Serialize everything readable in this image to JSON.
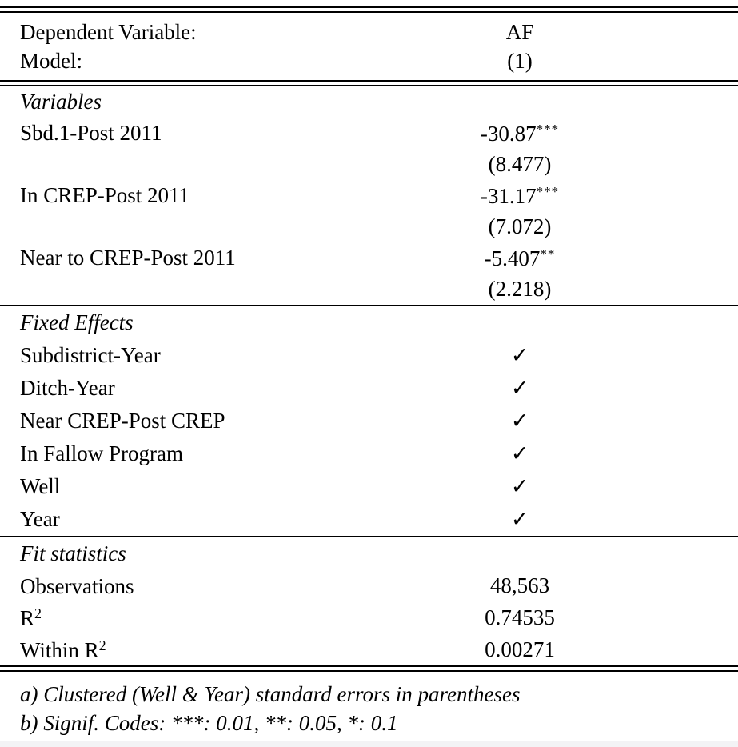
{
  "colors": {
    "background": "#ffffff",
    "text": "#000000",
    "rule": "#000000",
    "bottom_strip": "#f3f3f5"
  },
  "header": {
    "rows": [
      {
        "label": "Dependent Variable:",
        "value": "AF"
      },
      {
        "label": "Model:",
        "value": "(1)"
      }
    ]
  },
  "variables": {
    "section_title": "Variables",
    "rows": [
      {
        "label": "Sbd.1-Post 2011",
        "coef": "-30.87",
        "stars": "***",
        "se": "(8.477)"
      },
      {
        "label": "In CREP-Post 2011",
        "coef": "-31.17",
        "stars": "***",
        "se": "(7.072)"
      },
      {
        "label": "Near to CREP-Post 2011",
        "coef": "-5.407",
        "stars": "**",
        "se": "(2.218)"
      }
    ]
  },
  "fixed_effects": {
    "section_title": "Fixed Effects",
    "rows": [
      {
        "label": "Subdistrict-Year",
        "value": "✓"
      },
      {
        "label": "Ditch-Year",
        "value": "✓"
      },
      {
        "label": "Near CREP-Post CREP",
        "value": "✓"
      },
      {
        "label": "In Fallow Program",
        "value": "✓"
      },
      {
        "label": "Well",
        "value": "✓"
      },
      {
        "label": "Year",
        "value": "✓"
      }
    ]
  },
  "fit_statistics": {
    "section_title": "Fit statistics",
    "rows": [
      {
        "label": "Observations",
        "label_sup": "",
        "value": "48,563"
      },
      {
        "label": "R",
        "label_sup": "2",
        "value": "0.74535"
      },
      {
        "label": "Within R",
        "label_sup": "2",
        "value": "0.00271"
      }
    ]
  },
  "footnotes": [
    "a) Clustered (Well & Year) standard errors in parentheses",
    "b) Signif. Codes: ***: 0.01, **: 0.05, *: 0.1"
  ]
}
